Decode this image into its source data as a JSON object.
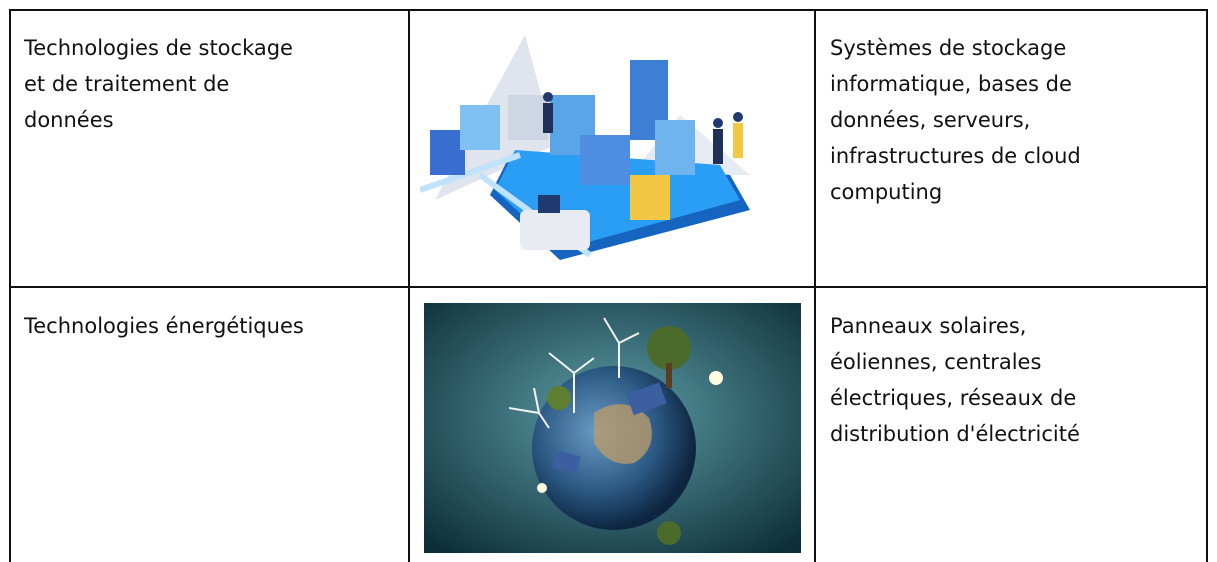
{
  "table": {
    "rows": [
      {
        "label": [
          "Technologies de stockage",
          "et de traitement de",
          "données"
        ],
        "description": [
          "Systèmes de stockage",
          "informatique, bases de",
          "données, serveurs,",
          "infrastructures de cloud",
          "computing"
        ]
      },
      {
        "label": [
          "Technologies énergétiques"
        ],
        "description": [
          "Panneaux solaires,",
          "éoliennes, centrales",
          "électriques, réseaux de",
          "distribution d'électricité"
        ]
      }
    ]
  }
}
